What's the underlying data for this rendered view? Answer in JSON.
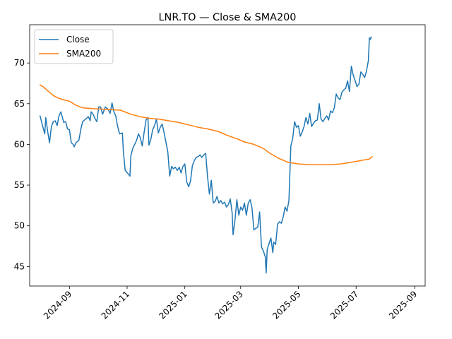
{
  "chart_data": {
    "type": "line",
    "title": "LNR.TO — Close & SMA200",
    "xlabel": "",
    "ylabel": "",
    "x_range": [
      "2024-07-21",
      "2025-09-12"
    ],
    "ylim": [
      42.6,
      74.7
    ],
    "grid": false,
    "legend_placement": "top-left",
    "x_ticks": [
      {
        "date": "2024-09-01",
        "label": "2024-09"
      },
      {
        "date": "2024-11-01",
        "label": "2024-11"
      },
      {
        "date": "2025-01-01",
        "label": "2025-01"
      },
      {
        "date": "2025-03-01",
        "label": "2025-03"
      },
      {
        "date": "2025-05-01",
        "label": "2025-05"
      },
      {
        "date": "2025-07-01",
        "label": "2025-07"
      },
      {
        "date": "2025-09-01",
        "label": "2025-09"
      }
    ],
    "y_ticks": [
      45,
      50,
      55,
      60,
      65,
      70
    ],
    "series": [
      {
        "name": "Close",
        "color": "#1f77b4",
        "points": [
          [
            "2024-08-01",
            63.5
          ],
          [
            "2024-08-04",
            62.1
          ],
          [
            "2024-08-06",
            61.3
          ],
          [
            "2024-08-07",
            63.3
          ],
          [
            "2024-08-09",
            61.6
          ],
          [
            "2024-08-11",
            60.2
          ],
          [
            "2024-08-13",
            62.2
          ],
          [
            "2024-08-15",
            62.8
          ],
          [
            "2024-08-17",
            62.9
          ],
          [
            "2024-08-19",
            62.3
          ],
          [
            "2024-08-21",
            63.5
          ],
          [
            "2024-08-23",
            64.0
          ],
          [
            "2024-08-26",
            62.7
          ],
          [
            "2024-08-28",
            62.8
          ],
          [
            "2024-08-30",
            61.9
          ],
          [
            "2024-09-01",
            61.8
          ],
          [
            "2024-09-03",
            60.2
          ],
          [
            "2024-09-05",
            60.0
          ],
          [
            "2024-09-06",
            59.7
          ],
          [
            "2024-09-08",
            60.2
          ],
          [
            "2024-09-11",
            60.5
          ],
          [
            "2024-09-13",
            61.8
          ],
          [
            "2024-09-15",
            62.8
          ],
          [
            "2024-09-17",
            63.0
          ],
          [
            "2024-09-19",
            63.2
          ],
          [
            "2024-09-21",
            63.4
          ],
          [
            "2024-09-23",
            62.9
          ],
          [
            "2024-09-24",
            64.0
          ],
          [
            "2024-09-26",
            63.7
          ],
          [
            "2024-09-28",
            63.2
          ],
          [
            "2024-09-30",
            62.8
          ],
          [
            "2024-10-02",
            64.6
          ],
          [
            "2024-10-04",
            64.6
          ],
          [
            "2024-10-06",
            63.7
          ],
          [
            "2024-10-09",
            64.6
          ],
          [
            "2024-10-12",
            64.3
          ],
          [
            "2024-10-14",
            63.8
          ],
          [
            "2024-10-16",
            65.1
          ],
          [
            "2024-10-18",
            64.0
          ],
          [
            "2024-10-20",
            63.5
          ],
          [
            "2024-10-22",
            62.2
          ],
          [
            "2024-10-24",
            61.3
          ],
          [
            "2024-10-27",
            61.4
          ],
          [
            "2024-10-28",
            59.2
          ],
          [
            "2024-10-30",
            56.8
          ],
          [
            "2024-11-02",
            56.4
          ],
          [
            "2024-11-04",
            56.1
          ],
          [
            "2024-11-05",
            58.6
          ],
          [
            "2024-11-07",
            59.5
          ],
          [
            "2024-11-09",
            60.0
          ],
          [
            "2024-11-11",
            60.5
          ],
          [
            "2024-11-13",
            61.3
          ],
          [
            "2024-11-15",
            60.8
          ],
          [
            "2024-11-17",
            59.8
          ],
          [
            "2024-11-19",
            61.5
          ],
          [
            "2024-11-21",
            63.0
          ],
          [
            "2024-11-23",
            63.3
          ],
          [
            "2024-11-24",
            59.9
          ],
          [
            "2024-11-26",
            60.6
          ],
          [
            "2024-11-28",
            61.8
          ],
          [
            "2024-11-30",
            62.3
          ],
          [
            "2024-12-02",
            63.1
          ],
          [
            "2024-12-04",
            61.4
          ],
          [
            "2024-12-06",
            62.1
          ],
          [
            "2024-12-08",
            62.5
          ],
          [
            "2024-12-10",
            61.5
          ],
          [
            "2024-12-12",
            60.3
          ],
          [
            "2024-12-14",
            59.1
          ],
          [
            "2024-12-16",
            56.1
          ],
          [
            "2024-12-18",
            57.3
          ],
          [
            "2024-12-20",
            57.0
          ],
          [
            "2024-12-22",
            57.2
          ],
          [
            "2024-12-24",
            56.8
          ],
          [
            "2024-12-26",
            57.2
          ],
          [
            "2024-12-28",
            56.5
          ],
          [
            "2024-12-30",
            57.3
          ],
          [
            "2025-01-01",
            57.6
          ],
          [
            "2025-01-03",
            55.4
          ],
          [
            "2025-01-05",
            54.8
          ],
          [
            "2025-01-07",
            55.5
          ],
          [
            "2025-01-09",
            57.4
          ],
          [
            "2025-01-11",
            58.0
          ],
          [
            "2025-01-13",
            58.4
          ],
          [
            "2025-01-15",
            58.5
          ],
          [
            "2025-01-17",
            58.7
          ],
          [
            "2025-01-19",
            58.4
          ],
          [
            "2025-01-21",
            58.7
          ],
          [
            "2025-01-23",
            58.9
          ],
          [
            "2025-01-25",
            56.0
          ],
          [
            "2025-01-27",
            53.9
          ],
          [
            "2025-01-29",
            55.6
          ],
          [
            "2025-01-31",
            52.8
          ],
          [
            "2025-02-02",
            53.0
          ],
          [
            "2025-02-04",
            53.6
          ],
          [
            "2025-02-06",
            52.8
          ],
          [
            "2025-02-08",
            53.1
          ],
          [
            "2025-02-10",
            52.7
          ],
          [
            "2025-02-12",
            52.9
          ],
          [
            "2025-02-14",
            52.3
          ],
          [
            "2025-02-16",
            52.6
          ],
          [
            "2025-02-18",
            53.3
          ],
          [
            "2025-02-20",
            51.6
          ],
          [
            "2025-02-21",
            48.9
          ],
          [
            "2025-02-23",
            50.7
          ],
          [
            "2025-02-25",
            53.2
          ],
          [
            "2025-02-27",
            51.3
          ],
          [
            "2025-03-01",
            52.3
          ],
          [
            "2025-03-03",
            51.9
          ],
          [
            "2025-03-05",
            52.8
          ],
          [
            "2025-03-07",
            51.3
          ],
          [
            "2025-03-09",
            52.8
          ],
          [
            "2025-03-11",
            53.2
          ],
          [
            "2025-03-13",
            52.2
          ],
          [
            "2025-03-15",
            49.5
          ],
          [
            "2025-03-17",
            49.7
          ],
          [
            "2025-03-19",
            49.8
          ],
          [
            "2025-03-21",
            51.7
          ],
          [
            "2025-03-23",
            47.4
          ],
          [
            "2025-03-25",
            46.9
          ],
          [
            "2025-03-27",
            46.2
          ],
          [
            "2025-03-28",
            44.2
          ],
          [
            "2025-03-29",
            47.1
          ],
          [
            "2025-03-31",
            47.8
          ],
          [
            "2025-04-02",
            48.5
          ],
          [
            "2025-04-04",
            46.7
          ],
          [
            "2025-04-05",
            48.0
          ],
          [
            "2025-04-07",
            47.7
          ],
          [
            "2025-04-09",
            50.2
          ],
          [
            "2025-04-11",
            50.5
          ],
          [
            "2025-04-13",
            50.3
          ],
          [
            "2025-04-15",
            51.1
          ],
          [
            "2025-04-17",
            52.3
          ],
          [
            "2025-04-19",
            51.8
          ],
          [
            "2025-04-21",
            53.1
          ],
          [
            "2025-04-23",
            59.8
          ],
          [
            "2025-04-25",
            60.7
          ],
          [
            "2025-04-27",
            62.8
          ],
          [
            "2025-04-29",
            62.1
          ],
          [
            "2025-05-01",
            62.3
          ],
          [
            "2025-05-03",
            61.0
          ],
          [
            "2025-05-05",
            61.5
          ],
          [
            "2025-05-07",
            62.2
          ],
          [
            "2025-05-09",
            63.3
          ],
          [
            "2025-05-11",
            62.5
          ],
          [
            "2025-05-13",
            63.8
          ],
          [
            "2025-05-15",
            62.2
          ],
          [
            "2025-05-17",
            62.6
          ],
          [
            "2025-05-19",
            62.9
          ],
          [
            "2025-05-21",
            63.0
          ],
          [
            "2025-05-23",
            65.0
          ],
          [
            "2025-05-25",
            63.1
          ],
          [
            "2025-05-27",
            62.8
          ],
          [
            "2025-05-29",
            63.2
          ],
          [
            "2025-05-31",
            63.5
          ],
          [
            "2025-06-02",
            63.0
          ],
          [
            "2025-06-04",
            64.1
          ],
          [
            "2025-06-06",
            63.9
          ],
          [
            "2025-06-08",
            64.5
          ],
          [
            "2025-06-10",
            66.2
          ],
          [
            "2025-06-12",
            65.7
          ],
          [
            "2025-06-14",
            65.5
          ],
          [
            "2025-06-16",
            66.4
          ],
          [
            "2025-06-18",
            66.7
          ],
          [
            "2025-06-20",
            66.9
          ],
          [
            "2025-06-22",
            67.8
          ],
          [
            "2025-06-24",
            66.5
          ],
          [
            "2025-06-26",
            69.6
          ],
          [
            "2025-06-28",
            68.5
          ],
          [
            "2025-06-30",
            67.8
          ],
          [
            "2025-07-02",
            67.1
          ],
          [
            "2025-07-04",
            67.4
          ],
          [
            "2025-07-06",
            68.9
          ],
          [
            "2025-07-08",
            68.6
          ],
          [
            "2025-07-10",
            68.2
          ],
          [
            "2025-07-12",
            69.0
          ],
          [
            "2025-07-14",
            70.3
          ],
          [
            "2025-07-15",
            73.1
          ],
          [
            "2025-07-16",
            72.9
          ],
          [
            "2025-07-17",
            73.2
          ]
        ]
      },
      {
        "name": "SMA200",
        "color": "#ff7f0e",
        "points": [
          [
            "2024-08-01",
            67.3
          ],
          [
            "2024-08-04",
            67.1
          ],
          [
            "2024-08-07",
            66.8
          ],
          [
            "2024-08-11",
            66.4
          ],
          [
            "2024-08-15",
            66.0
          ],
          [
            "2024-08-20",
            65.7
          ],
          [
            "2024-08-25",
            65.5
          ],
          [
            "2024-09-01",
            65.3
          ],
          [
            "2024-09-08",
            64.8
          ],
          [
            "2024-09-15",
            64.5
          ],
          [
            "2024-09-25",
            64.4
          ],
          [
            "2024-10-10",
            64.3
          ],
          [
            "2024-10-25",
            64.2
          ],
          [
            "2024-11-05",
            63.7
          ],
          [
            "2024-11-15",
            63.4
          ],
          [
            "2024-11-25",
            63.2
          ],
          [
            "2024-12-05",
            63.1
          ],
          [
            "2024-12-15",
            62.9
          ],
          [
            "2024-12-25",
            62.7
          ],
          [
            "2025-01-05",
            62.4
          ],
          [
            "2025-01-15",
            62.1
          ],
          [
            "2025-01-25",
            61.9
          ],
          [
            "2025-02-05",
            61.6
          ],
          [
            "2025-02-15",
            61.1
          ],
          [
            "2025-02-25",
            60.7
          ],
          [
            "2025-03-05",
            60.3
          ],
          [
            "2025-03-15",
            60.0
          ],
          [
            "2025-03-25",
            59.5
          ],
          [
            "2025-04-01",
            58.9
          ],
          [
            "2025-04-10",
            58.3
          ],
          [
            "2025-04-20",
            57.8
          ],
          [
            "2025-05-01",
            57.6
          ],
          [
            "2025-05-15",
            57.5
          ],
          [
            "2025-06-01",
            57.5
          ],
          [
            "2025-06-15",
            57.6
          ],
          [
            "2025-07-01",
            57.9
          ],
          [
            "2025-07-10",
            58.1
          ],
          [
            "2025-07-15",
            58.2
          ],
          [
            "2025-07-18",
            58.5
          ]
        ]
      }
    ]
  }
}
